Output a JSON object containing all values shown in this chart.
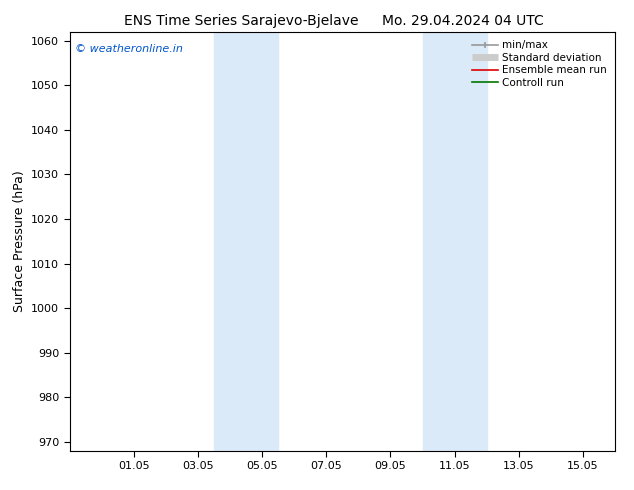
{
  "title": "ENS Time Series Sarajevo-Bjelave",
  "title2": "Mo. 29.04.2024 04 UTC",
  "ylabel": "Surface Pressure (hPa)",
  "ylim": [
    968,
    1062
  ],
  "yticks": [
    970,
    980,
    990,
    1000,
    1010,
    1020,
    1030,
    1040,
    1050,
    1060
  ],
  "xtick_labels": [
    "01.05",
    "03.05",
    "05.05",
    "07.05",
    "09.05",
    "11.05",
    "13.05",
    "15.05"
  ],
  "xtick_positions": [
    2,
    4,
    6,
    8,
    10,
    12,
    14,
    16
  ],
  "xlim": [
    0,
    17
  ],
  "shaded_regions": [
    {
      "x_start": 4.5,
      "x_end": 6.5,
      "color": "#daeaf8"
    },
    {
      "x_start": 11.0,
      "x_end": 13.0,
      "color": "#daeaf8"
    }
  ],
  "watermark_text": "© weatheronline.in",
  "watermark_color": "#0055cc",
  "legend_items": [
    {
      "label": "min/max",
      "color": "#999999",
      "lw": 1.2,
      "ls": "-"
    },
    {
      "label": "Standard deviation",
      "color": "#cccccc",
      "lw": 5,
      "ls": "-"
    },
    {
      "label": "Ensemble mean run",
      "color": "#dd0000",
      "lw": 1.2,
      "ls": "-"
    },
    {
      "label": "Controll run",
      "color": "#007700",
      "lw": 1.2,
      "ls": "-"
    }
  ],
  "bg_color": "#ffffff",
  "tick_color": "#000000",
  "spine_color": "#000000"
}
